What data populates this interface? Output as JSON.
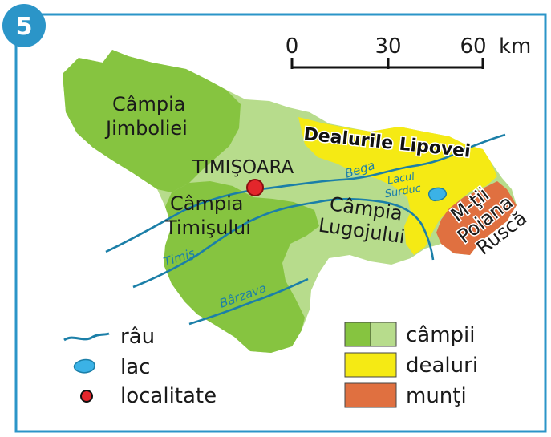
{
  "badge": {
    "number": "5"
  },
  "scale": {
    "ticks": [
      "0",
      "30",
      "60"
    ],
    "unit": "km"
  },
  "labels": {
    "campia_jimboliei": [
      "Câmpia",
      "Jimboliei"
    ],
    "campia_timisului": [
      "Câmpia",
      "Timişului"
    ],
    "campia_lugojului": [
      "Câmpia",
      "Lugojului"
    ],
    "timisoara": "TIMIŞOARA",
    "dealurile_lipovei": "Dealurile Lipovei",
    "muntii_poiana_rusca": [
      "M-ţii",
      "Poiana",
      "Ruscă"
    ],
    "lacul_surduc": [
      "Lacul",
      "Surduc"
    ],
    "rivers": {
      "bega": "Bega",
      "timis": "Timiş",
      "barzava": "Bârzava"
    }
  },
  "legend": {
    "symbols": [
      {
        "label": "râu",
        "icon": "river-icon"
      },
      {
        "label": "lac",
        "icon": "lake-icon"
      },
      {
        "label": "localitate",
        "icon": "city-dot-icon"
      }
    ],
    "areas": [
      {
        "label": "câmpii",
        "color": "#86c440"
      },
      {
        "label": "dealuri",
        "color": "#f5ea14"
      },
      {
        "label": "munţi",
        "color": "#e07040"
      }
    ]
  },
  "colors": {
    "plain_dark": "#86c440",
    "plain_light": "#b7dc8c",
    "hills": "#f5ea14",
    "mountains": "#e07040",
    "water": "#1b7fa8",
    "lake": "#3bb2e6",
    "city": "#e3262b",
    "frame": "#2b95c8"
  }
}
